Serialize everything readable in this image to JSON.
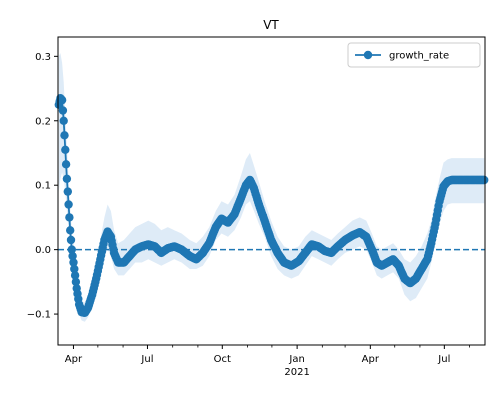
{
  "chart_data": {
    "type": "line",
    "title": "VT",
    "xlabel": "",
    "ylabel": "",
    "x_start": "2020-03-13",
    "x_end": "2021-08-20",
    "x_ticks": [
      {
        "date": "2020-04-01",
        "label": "Apr"
      },
      {
        "date": "2020-07-01",
        "label": "Jul"
      },
      {
        "date": "2020-10-01",
        "label": "Oct"
      },
      {
        "date": "2021-01-01",
        "label": "Jan"
      },
      {
        "date": "2021-04-01",
        "label": "Apr"
      },
      {
        "date": "2021-07-01",
        "label": "Jul"
      }
    ],
    "x_year_label": "2021",
    "ylim": [
      -0.148,
      0.33
    ],
    "y_ticks": [
      -0.1,
      0.0,
      0.1,
      0.2,
      0.3
    ],
    "y_tick_labels": [
      "−0.1",
      "0.0",
      "0.1",
      "0.2",
      "0.3"
    ],
    "reference_line": 0.0,
    "grid": false,
    "legend_position": "top-right",
    "series": [
      {
        "name": "growth_rate",
        "color": "#1f77b4",
        "band_color": "#d6e6f5",
        "points": [
          [
            "2020-03-14",
            0.225,
            0.09,
            0.3
          ],
          [
            "2020-03-16",
            0.235,
            0.11,
            0.305
          ],
          [
            "2020-03-18",
            0.232,
            0.12,
            0.29
          ],
          [
            "2020-03-20",
            0.2,
            0.11,
            0.26
          ],
          [
            "2020-03-22",
            0.155,
            0.09,
            0.21
          ],
          [
            "2020-03-24",
            0.11,
            0.06,
            0.16
          ],
          [
            "2020-03-26",
            0.07,
            0.03,
            0.11
          ],
          [
            "2020-03-28",
            0.03,
            0.0,
            0.065
          ],
          [
            "2020-03-30",
            0.0,
            -0.025,
            0.03
          ],
          [
            "2020-04-02",
            -0.03,
            -0.05,
            0.0
          ],
          [
            "2020-04-05",
            -0.06,
            -0.08,
            -0.04
          ],
          [
            "2020-04-08",
            -0.085,
            -0.1,
            -0.065
          ],
          [
            "2020-04-11",
            -0.097,
            -0.11,
            -0.08
          ],
          [
            "2020-04-15",
            -0.098,
            -0.112,
            -0.082
          ],
          [
            "2020-04-19",
            -0.09,
            -0.105,
            -0.072
          ],
          [
            "2020-04-24",
            -0.07,
            -0.088,
            -0.05
          ],
          [
            "2020-04-29",
            -0.045,
            -0.065,
            -0.02
          ],
          [
            "2020-05-04",
            -0.015,
            -0.04,
            0.015
          ],
          [
            "2020-05-09",
            0.015,
            -0.01,
            0.05
          ],
          [
            "2020-05-13",
            0.028,
            0.0,
            0.07
          ],
          [
            "2020-05-17",
            0.02,
            -0.01,
            0.06
          ],
          [
            "2020-05-21",
            -0.005,
            -0.03,
            0.03
          ],
          [
            "2020-05-26",
            -0.02,
            -0.04,
            0.01
          ],
          [
            "2020-06-02",
            -0.02,
            -0.04,
            0.015
          ],
          [
            "2020-06-09",
            -0.01,
            -0.03,
            0.025
          ],
          [
            "2020-06-16",
            0.0,
            -0.02,
            0.035
          ],
          [
            "2020-06-24",
            0.005,
            -0.02,
            0.04
          ],
          [
            "2020-07-02",
            0.008,
            -0.015,
            0.045
          ],
          [
            "2020-07-10",
            0.005,
            -0.02,
            0.04
          ],
          [
            "2020-07-18",
            -0.005,
            -0.025,
            0.03
          ],
          [
            "2020-07-26",
            0.002,
            -0.02,
            0.035
          ],
          [
            "2020-08-03",
            0.005,
            -0.015,
            0.03
          ],
          [
            "2020-08-12",
            0.0,
            -0.02,
            0.025
          ],
          [
            "2020-08-22",
            -0.01,
            -0.03,
            0.015
          ],
          [
            "2020-08-30",
            -0.015,
            -0.03,
            0.01
          ],
          [
            "2020-09-07",
            -0.005,
            -0.025,
            0.02
          ],
          [
            "2020-09-15",
            0.01,
            -0.01,
            0.035
          ],
          [
            "2020-09-23",
            0.035,
            0.015,
            0.06
          ],
          [
            "2020-09-30",
            0.048,
            0.025,
            0.075
          ],
          [
            "2020-10-08",
            0.042,
            0.02,
            0.07
          ],
          [
            "2020-10-16",
            0.055,
            0.03,
            0.085
          ],
          [
            "2020-10-24",
            0.08,
            0.05,
            0.115
          ],
          [
            "2020-10-30",
            0.1,
            0.07,
            0.14
          ],
          [
            "2020-11-04",
            0.108,
            0.075,
            0.15
          ],
          [
            "2020-11-09",
            0.095,
            0.06,
            0.13
          ],
          [
            "2020-11-15",
            0.07,
            0.04,
            0.105
          ],
          [
            "2020-11-22",
            0.045,
            0.02,
            0.075
          ],
          [
            "2020-11-30",
            0.015,
            -0.01,
            0.045
          ],
          [
            "2020-12-08",
            -0.005,
            -0.03,
            0.02
          ],
          [
            "2020-12-16",
            -0.02,
            -0.04,
            0.005
          ],
          [
            "2020-12-25",
            -0.025,
            -0.045,
            0.0
          ],
          [
            "2021-01-03",
            -0.018,
            -0.04,
            0.005
          ],
          [
            "2021-01-11",
            -0.005,
            -0.025,
            0.02
          ],
          [
            "2021-01-19",
            0.008,
            -0.01,
            0.03
          ],
          [
            "2021-01-27",
            0.005,
            -0.015,
            0.025
          ],
          [
            "2021-02-04",
            -0.002,
            -0.02,
            0.02
          ],
          [
            "2021-02-12",
            -0.005,
            -0.025,
            0.015
          ],
          [
            "2021-02-20",
            0.005,
            -0.015,
            0.025
          ],
          [
            "2021-03-01",
            0.015,
            -0.005,
            0.035
          ],
          [
            "2021-03-10",
            0.022,
            0.0,
            0.045
          ],
          [
            "2021-03-19",
            0.027,
            0.005,
            0.05
          ],
          [
            "2021-03-27",
            0.02,
            0.0,
            0.045
          ],
          [
            "2021-04-03",
            0.0,
            -0.02,
            0.025
          ],
          [
            "2021-04-09",
            -0.02,
            -0.04,
            0.005
          ],
          [
            "2021-04-15",
            -0.025,
            -0.045,
            0.0
          ],
          [
            "2021-04-22",
            -0.02,
            -0.04,
            0.005
          ],
          [
            "2021-04-29",
            -0.015,
            -0.035,
            0.01
          ],
          [
            "2021-05-06",
            -0.025,
            -0.045,
            0.0
          ],
          [
            "2021-05-13",
            -0.045,
            -0.07,
            -0.015
          ],
          [
            "2021-05-20",
            -0.052,
            -0.08,
            -0.02
          ],
          [
            "2021-05-27",
            -0.045,
            -0.075,
            -0.01
          ],
          [
            "2021-06-03",
            -0.03,
            -0.06,
            0.005
          ],
          [
            "2021-06-10",
            -0.015,
            -0.045,
            0.025
          ],
          [
            "2021-06-15",
            0.01,
            -0.02,
            0.045
          ],
          [
            "2021-06-20",
            0.04,
            0.01,
            0.08
          ],
          [
            "2021-06-25",
            0.075,
            0.04,
            0.11
          ],
          [
            "2021-06-30",
            0.098,
            0.06,
            0.135
          ],
          [
            "2021-07-05",
            0.106,
            0.07,
            0.14
          ],
          [
            "2021-07-10",
            0.108,
            0.072,
            0.142
          ],
          [
            "2021-07-20",
            0.108,
            0.072,
            0.142
          ],
          [
            "2021-07-30",
            0.108,
            0.072,
            0.142
          ],
          [
            "2021-08-09",
            0.108,
            0.072,
            0.142
          ],
          [
            "2021-08-19",
            0.108,
            0.072,
            0.142
          ]
        ]
      }
    ]
  }
}
